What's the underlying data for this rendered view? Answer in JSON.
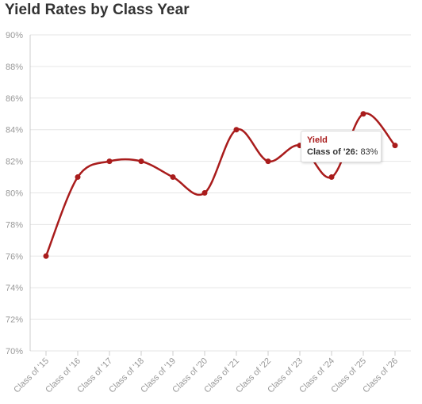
{
  "chart_data": {
    "type": "line",
    "title": "Yield Rates by Class Year",
    "categories": [
      "Class of '15",
      "Class of '16",
      "Class of '17",
      "Class of '18",
      "Class of '19",
      "Class of '20",
      "Class of '21",
      "Class of '22",
      "Class of '23",
      "Class of '24",
      "Class of '25",
      "Class of '26"
    ],
    "series": [
      {
        "name": "Yield",
        "values": [
          76,
          81,
          82,
          82,
          81,
          80,
          84,
          82,
          83,
          81,
          85,
          83
        ]
      }
    ],
    "ylim": [
      70,
      90
    ],
    "yticks": [
      "70%",
      "72%",
      "74%",
      "76%",
      "78%",
      "80%",
      "82%",
      "84%",
      "86%",
      "88%",
      "90%"
    ],
    "grid": true,
    "color": "#a91c1c"
  },
  "tooltip": {
    "series": "Yield",
    "category": "Class of '26:",
    "value": "83%"
  }
}
